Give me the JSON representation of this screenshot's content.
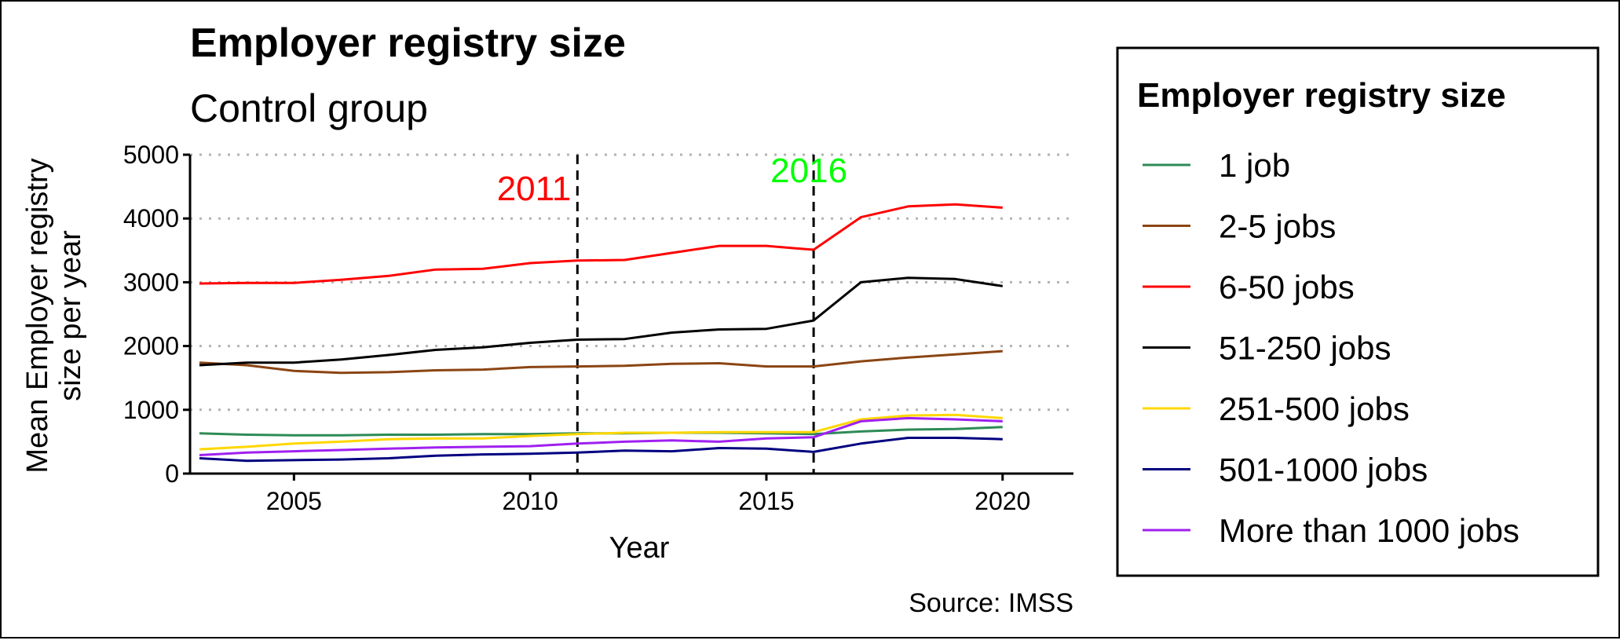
{
  "chart_data": {
    "type": "line",
    "title": "Employer registry size",
    "subtitle": "Control group",
    "xlabel": "Year",
    "ylabel_lines": [
      "Mean Employer registry",
      "size per year"
    ],
    "caption": "Source: IMSS",
    "xlim": [
      2002.8,
      2021.5
    ],
    "ylim": [
      0,
      5000
    ],
    "x_ticks": [
      2005,
      2010,
      2015,
      2020
    ],
    "y_ticks": [
      0,
      1000,
      2000,
      3000,
      4000,
      5000
    ],
    "grid": "horizontal-dotted",
    "x": [
      2003,
      2004,
      2005,
      2006,
      2007,
      2008,
      2009,
      2010,
      2011,
      2012,
      2013,
      2014,
      2015,
      2016,
      2017,
      2018,
      2019,
      2020
    ],
    "series": [
      {
        "name": "1 job",
        "color": "#2E8B57",
        "values": [
          630,
          610,
          600,
          600,
          610,
          610,
          620,
          620,
          630,
          630,
          640,
          640,
          630,
          620,
          660,
          690,
          700,
          730
        ]
      },
      {
        "name": "2-5 jobs",
        "color": "#8B4513",
        "values": [
          1740,
          1700,
          1610,
          1580,
          1590,
          1620,
          1630,
          1670,
          1680,
          1690,
          1720,
          1730,
          1680,
          1680,
          1760,
          1820,
          1870,
          1920
        ]
      },
      {
        "name": "6-50 jobs",
        "color": "#FF0000",
        "values": [
          2980,
          2990,
          2990,
          3040,
          3100,
          3200,
          3210,
          3300,
          3340,
          3350,
          3460,
          3570,
          3570,
          3510,
          4020,
          4190,
          4220,
          4170
        ]
      },
      {
        "name": "51-250 jobs",
        "color": "#000000",
        "values": [
          1700,
          1740,
          1740,
          1790,
          1860,
          1940,
          1980,
          2050,
          2100,
          2110,
          2210,
          2260,
          2270,
          2400,
          3000,
          3070,
          3050,
          2940
        ]
      },
      {
        "name": "251-500 jobs",
        "color": "#FFD700",
        "values": [
          380,
          420,
          470,
          500,
          540,
          550,
          550,
          590,
          620,
          640,
          640,
          650,
          650,
          650,
          850,
          910,
          920,
          870
        ]
      },
      {
        "name": "501-1000 jobs",
        "color": "#000080",
        "values": [
          240,
          200,
          210,
          220,
          240,
          280,
          300,
          310,
          330,
          360,
          350,
          400,
          390,
          340,
          470,
          560,
          560,
          540
        ]
      },
      {
        "name": "More than 1000 jobs",
        "color": "#A020F0",
        "values": [
          290,
          330,
          350,
          370,
          390,
          410,
          420,
          430,
          470,
          500,
          520,
          500,
          550,
          570,
          820,
          870,
          850,
          820
        ]
      }
    ],
    "vlines": [
      {
        "x": 2011,
        "label": "2011",
        "color": "#FF0000",
        "label_side": "left"
      },
      {
        "x": 2016,
        "label": "2016",
        "color": "#00FF00",
        "label_side": "center"
      }
    ],
    "legend": {
      "title": "Employer registry size",
      "position": "right"
    }
  }
}
